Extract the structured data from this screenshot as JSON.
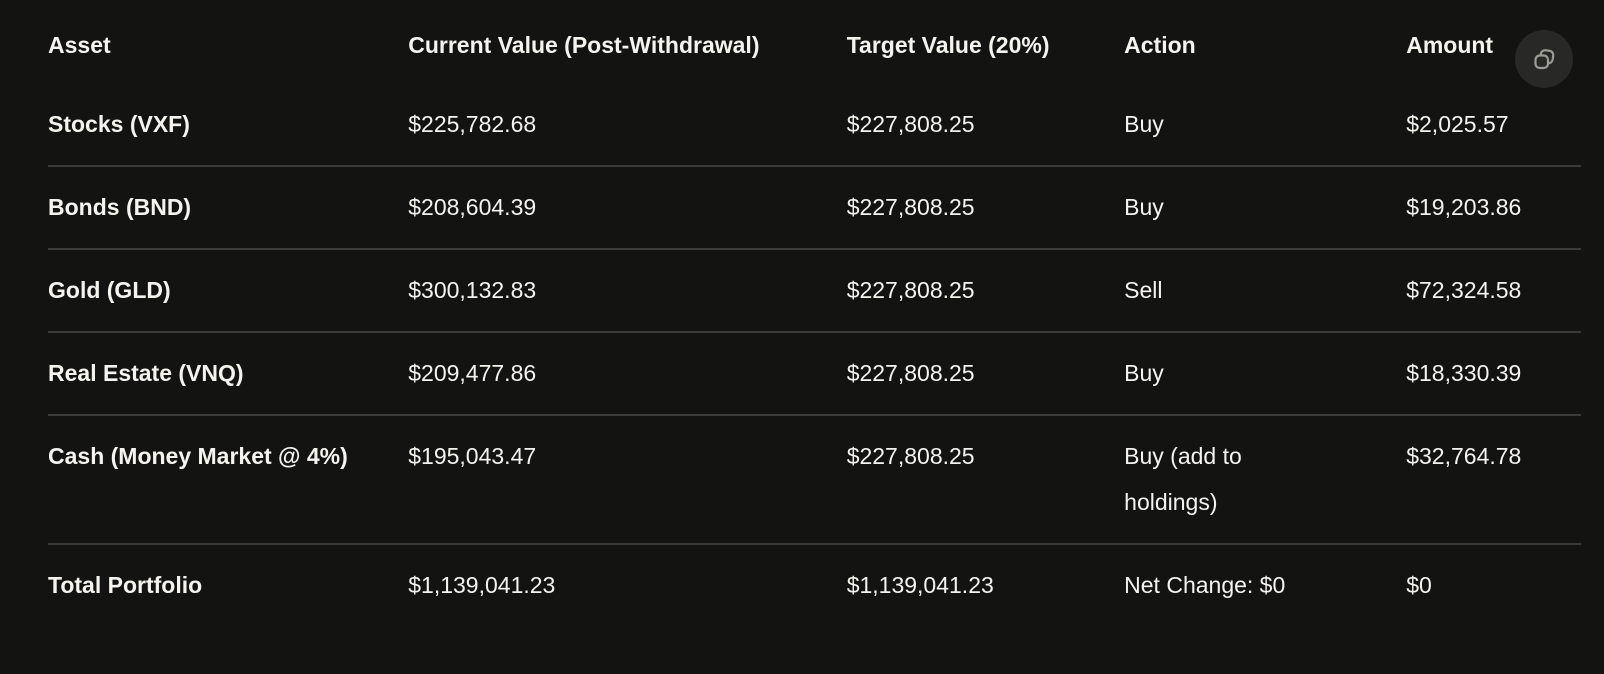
{
  "colors": {
    "background": "#131312",
    "text": "#f4f3ee",
    "row_separator": "#3b3b38",
    "copy_button_background": "#282826",
    "copy_button_icon": "#9c9c94"
  },
  "copy_button": {
    "icon": "copy-icon"
  },
  "table": {
    "headers": [
      "Asset",
      "Current Value (Post-Withdrawal)",
      "Target Value (20%)",
      "Action",
      "Amount"
    ],
    "column_widths_pct": [
      23.5,
      28.6,
      18.1,
      18.4,
      11.4
    ],
    "rows": [
      {
        "asset": "Stocks (VXF)",
        "current_value": "$225,782.68",
        "target_value": "$227,808.25",
        "action": "Buy",
        "amount": "$2,025.57"
      },
      {
        "asset": "Bonds (BND)",
        "current_value": "$208,604.39",
        "target_value": "$227,808.25",
        "action": "Buy",
        "amount": "$19,203.86"
      },
      {
        "asset": "Gold (GLD)",
        "current_value": "$300,132.83",
        "target_value": "$227,808.25",
        "action": "Sell",
        "amount": "$72,324.58"
      },
      {
        "asset": "Real Estate (VNQ)",
        "current_value": "$209,477.86",
        "target_value": "$227,808.25",
        "action": "Buy",
        "amount": "$18,330.39"
      },
      {
        "asset": "Cash (Money Market @ 4%)",
        "current_value": "$195,043.47",
        "target_value": "$227,808.25",
        "action": "Buy (add to holdings)",
        "amount": "$32,764.78"
      },
      {
        "asset": "Total Portfolio",
        "current_value": "$1,139,041.23",
        "target_value": "$1,139,041.23",
        "action": "Net Change: $0",
        "amount": "$0"
      }
    ]
  }
}
